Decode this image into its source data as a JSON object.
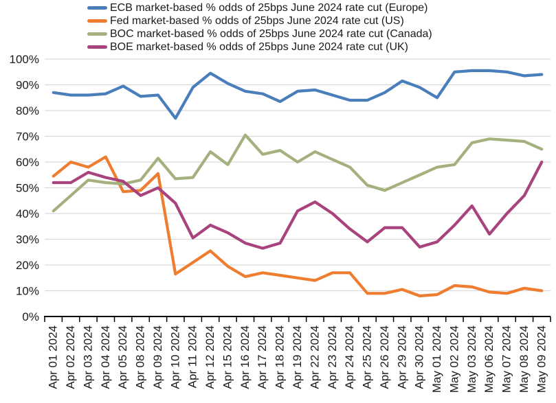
{
  "chart_data": {
    "type": "line",
    "title": "",
    "legend_position": "top-left",
    "grid": "horizontal",
    "categories": [
      "Apr 01 2024",
      "Apr 02 2024",
      "Apr 03 2024",
      "Apr 04 2024",
      "Apr 05 2024",
      "Apr 08 2024",
      "Apr 09 2024",
      "Apr 10 2024",
      "Apr 11 2024",
      "Apr 12 2024",
      "Apr 15 2024",
      "Apr 16 2024",
      "Apr 17 2024",
      "Apr 18 2024",
      "Apr 19 2024",
      "Apr 22 2024",
      "Apr 23 2024",
      "Apr 24 2024",
      "Apr 25 2024",
      "Apr 26 2024",
      "Apr 29 2024",
      "Apr 30 2024",
      "May 01 2024",
      "May 02 2024",
      "May 03 2024",
      "May 06 2024",
      "May 07 2024",
      "May 08 2024",
      "May 09 2024"
    ],
    "series": [
      {
        "key": "ecb",
        "name": "ECB market-based % odds of 25bps June 2024 rate cut (Europe)",
        "color": "#4a7ebb",
        "values": [
          87,
          86,
          86,
          86.5,
          89.5,
          85.5,
          86,
          77,
          89,
          94.5,
          90.5,
          87.5,
          86.5,
          83.5,
          87.5,
          88,
          86,
          84,
          84,
          87,
          91.5,
          89,
          85,
          95,
          95.5,
          95.5,
          95,
          93.5,
          94
        ]
      },
      {
        "key": "fed",
        "name": "Fed market-based % odds of 25bps June 2024 rate cut (US)",
        "color": "#ee7d30",
        "values": [
          54.5,
          60,
          58,
          62,
          48.5,
          49,
          55.5,
          16.5,
          21,
          25.5,
          19.5,
          15.5,
          17,
          16,
          15,
          14,
          17,
          17,
          9,
          9,
          10.5,
          8,
          8.5,
          12,
          11.5,
          9.5,
          9,
          11,
          10
        ]
      },
      {
        "key": "boc",
        "name": "BOC market-based % odds of 25bps June 2024 rate cut (Canada)",
        "color": "#a4b17e",
        "values": [
          41,
          47,
          53,
          52,
          51.5,
          53,
          61.5,
          53.5,
          54,
          64,
          59,
          70.5,
          63,
          64.5,
          60,
          64,
          61,
          58,
          51,
          49,
          52,
          55,
          58,
          59,
          67.5,
          69,
          68.5,
          68,
          65
        ]
      },
      {
        "key": "boe",
        "name": "BOE market-based % odds of 25bps June 2024 rate cut (UK)",
        "color": "#a8437d",
        "values": [
          52,
          52,
          56,
          54,
          52.5,
          47,
          50,
          44,
          30.5,
          35.5,
          32.5,
          28.5,
          26.5,
          28.5,
          41,
          44.5,
          40,
          34,
          29,
          34.5,
          34.5,
          27,
          29,
          35.5,
          43,
          32,
          40,
          47,
          60
        ]
      }
    ],
    "y_axis": {
      "min": 0,
      "max": 100,
      "step": 10,
      "tick_labels": [
        "0%",
        "10%",
        "20%",
        "30%",
        "40%",
        "50%",
        "60%",
        "70%",
        "80%",
        "90%",
        "100%"
      ]
    }
  },
  "colors": {
    "gridline": "#d9d9d9",
    "axis": "#000000",
    "text": "#1a1a1a",
    "background": "#ffffff"
  }
}
